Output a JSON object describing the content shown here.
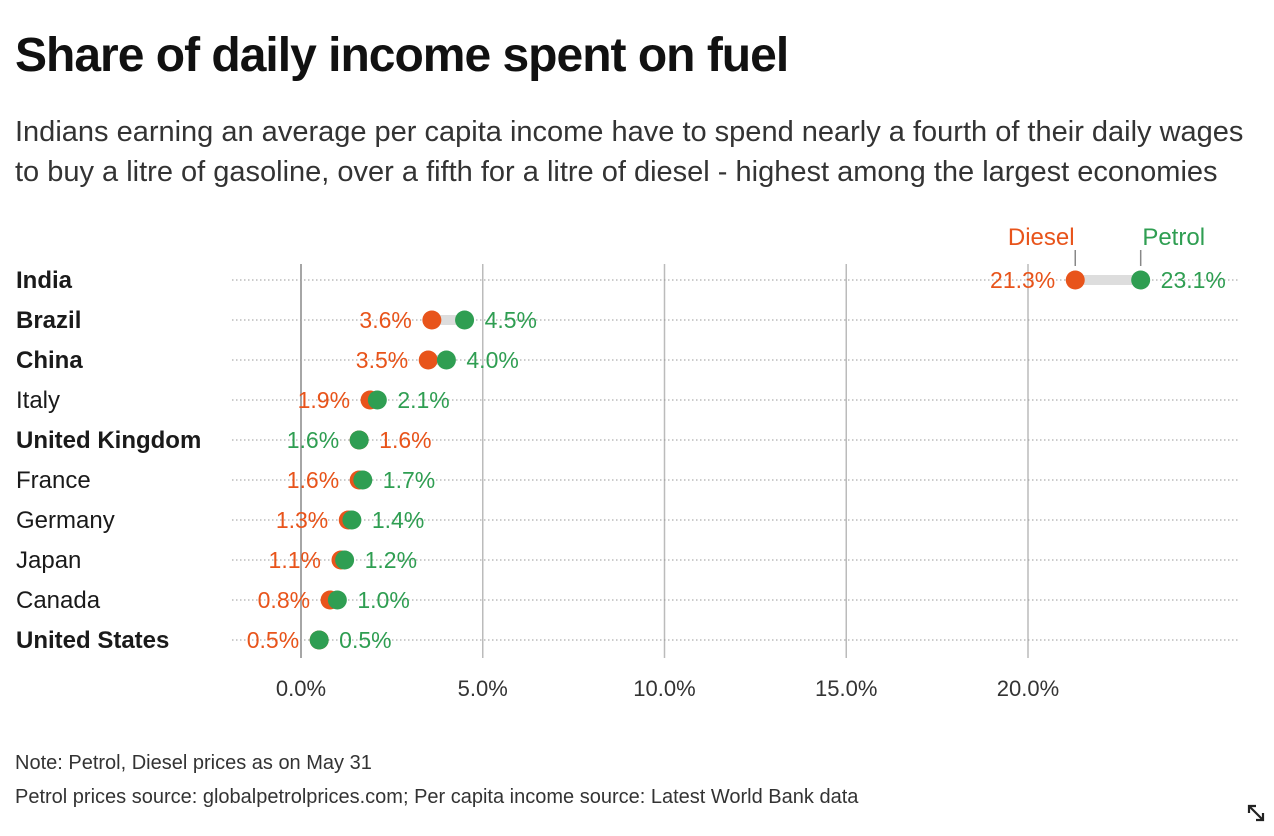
{
  "title": "Share of daily income spent on fuel",
  "subtitle": "Indians earning an average per capita income have to spend nearly a fourth of their daily wages to buy a litre of gasoline, over a fifth for a litre of diesel - highest among the largest economies",
  "notes": {
    "line1": "Note: Petrol, Diesel prices as on May 31",
    "line2": "Petrol prices source: globalpetrolprices.com; Per capita income source: Latest World Bank data"
  },
  "colors": {
    "diesel": "#e8541b",
    "petrol": "#2f9e52",
    "connector": "#dddddd",
    "grid": "#999999"
  },
  "icons": {
    "resize": "resize-arrows-icon"
  },
  "chart_data": {
    "type": "dot-plot",
    "categories": [
      "India",
      "Brazil",
      "China",
      "Italy",
      "United Kingdom",
      "France",
      "Germany",
      "Japan",
      "Canada",
      "United States"
    ],
    "bold_categories": [
      "India",
      "Brazil",
      "China",
      "United Kingdom",
      "United States"
    ],
    "series": [
      {
        "name": "Diesel",
        "values": [
          21.3,
          3.6,
          3.5,
          1.9,
          1.6,
          1.6,
          1.3,
          1.1,
          0.8,
          0.5
        ],
        "labels": [
          "21.3%",
          "3.6%",
          "3.5%",
          "1.9%",
          "1.6%",
          "1.6%",
          "1.3%",
          "1.1%",
          "0.8%",
          "0.5%"
        ]
      },
      {
        "name": "Petrol",
        "values": [
          23.1,
          4.5,
          4.0,
          2.1,
          1.6,
          1.7,
          1.4,
          1.2,
          1.0,
          0.5
        ],
        "labels": [
          "23.1%",
          "4.5%",
          "4.0%",
          "2.1%",
          "1.6%",
          "1.7%",
          "1.4%",
          "1.2%",
          "1.0%",
          "0.5%"
        ]
      }
    ],
    "x_ticks": [
      0,
      5,
      10,
      15,
      20
    ],
    "x_tick_labels": [
      "0.0%",
      "5.0%",
      "10.0%",
      "15.0%",
      "20.0%"
    ],
    "xlim": [
      0,
      25
    ]
  }
}
